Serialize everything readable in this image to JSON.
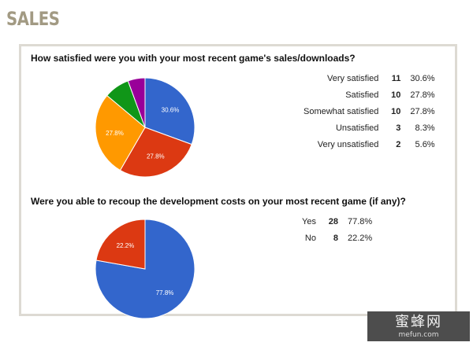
{
  "page_title": "SALES",
  "chart_data": [
    {
      "type": "pie",
      "title": "How satisfied were you with your most recent game's sales/downloads?",
      "slices": [
        {
          "label": "Very satisfied",
          "count": "11",
          "percent": "30.6%",
          "value": 30.6,
          "color": "#3366cc",
          "slice_label": "30.6%"
        },
        {
          "label": "Satisfied",
          "count": "10",
          "percent": "27.8%",
          "value": 27.8,
          "color": "#dc3912",
          "slice_label": "27.8%"
        },
        {
          "label": "Somewhat satisfied",
          "count": "10",
          "percent": "27.8%",
          "value": 27.8,
          "color": "#ff9900",
          "slice_label": "27.8%"
        },
        {
          "label": "Unsatisfied",
          "count": "3",
          "percent": "8.3%",
          "value": 8.3,
          "color": "#109618",
          "slice_label": ""
        },
        {
          "label": "Very unsatisfied",
          "count": "2",
          "percent": "5.6%",
          "value": 5.6,
          "color": "#990099",
          "slice_label": ""
        }
      ]
    },
    {
      "type": "pie",
      "title": "Were you able to recoup the development costs on your most recent game (if any)?",
      "slices": [
        {
          "label": "Yes",
          "count": "28",
          "percent": "77.8%",
          "value": 77.8,
          "color": "#3366cc",
          "slice_label": "77.8%"
        },
        {
          "label": "No",
          "count": "8",
          "percent": "22.2%",
          "value": 22.2,
          "color": "#dc3912",
          "slice_label": "22.2%"
        }
      ]
    }
  ],
  "watermark": {
    "main": "蜜蜂网",
    "sub": "mefun.com"
  }
}
